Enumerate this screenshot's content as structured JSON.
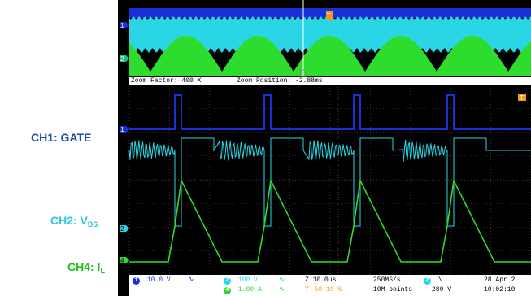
{
  "labels": {
    "gate": "CH1: GATE",
    "vds_main": "CH2: V",
    "vds_sub": "DS",
    "il_main": "CH4: I",
    "il_sub": "L"
  },
  "colors": {
    "ch1": "#1a2fd6",
    "ch2": "#2ad6e6",
    "ch4": "#2edc2e",
    "trigger": "#f29a1e"
  },
  "zoom": {
    "factor": "Zoom Factor: 400 X",
    "position": "Zoom Position: -2.88ms"
  },
  "bar": {
    "ch1_num": "1",
    "ch1_scale": "10.0 V",
    "ch2_num": "2",
    "ch2_scale": "100 V",
    "ch4_num": "4",
    "ch4_scale": "1.00 A",
    "timebase": "Z 10.0µs",
    "trig_pct": "50.10 %",
    "sample_rate": "250MS/s",
    "record": "10M points",
    "trig_ch": "2",
    "trig_slope": "\\",
    "trig_level": "280 V",
    "date": "28 Apr 2",
    "time": "10:02:10"
  },
  "markers": {
    "ch1": "1",
    "ch2": "2",
    "ch4": "4",
    "trigger": "T"
  }
}
